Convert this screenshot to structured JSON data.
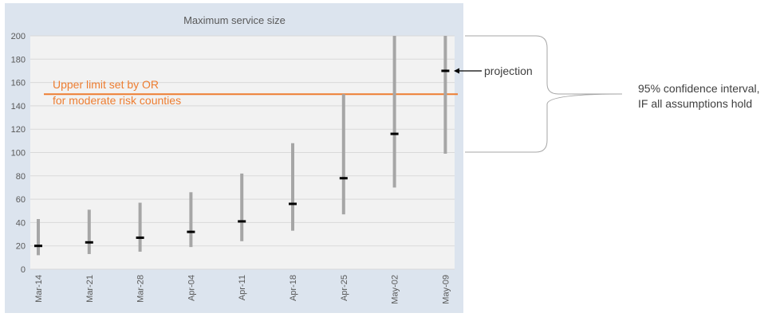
{
  "chart_data": {
    "type": "error-bar",
    "title": "Maximum service size",
    "categories": [
      "Mar-14",
      "Mar-21",
      "Mar-28",
      "Apr-04",
      "Apr-11",
      "Apr-18",
      "Apr-25",
      "May-02",
      "May-09"
    ],
    "series": [
      {
        "name": "",
        "values": [
          20,
          23,
          27,
          32,
          41,
          56,
          78,
          116,
          170
        ],
        "lower": [
          12,
          13,
          15,
          19,
          24,
          33,
          47,
          70,
          99
        ],
        "upper": [
          43,
          51,
          57,
          66,
          82,
          108,
          150,
          200,
          200
        ]
      }
    ],
    "yticks": [
      0,
      20,
      40,
      60,
      80,
      100,
      120,
      140,
      160,
      180,
      200
    ],
    "ylim": [
      0,
      200
    ],
    "xlabel": "",
    "ylabel": "",
    "grid": true,
    "reference_line": {
      "value": 150,
      "label_line1": "Upper limit set by OR",
      "label_line2": "for moderate risk counties"
    }
  },
  "annotations": {
    "projection": "projection",
    "ci_line1": "95% confidence interval,",
    "ci_line2": "IF all assumptions hold"
  },
  "colors": {
    "outer_background": "#dce4ee",
    "plot_background": "#f2f2f2",
    "gridline": "#d9d9d9",
    "error_bar": "#a6a6a6",
    "point": "#000000",
    "reference_line": "#ed7d31",
    "text": "#595959",
    "annotation_text": "#404040",
    "bracket": "#a6a6a6"
  }
}
